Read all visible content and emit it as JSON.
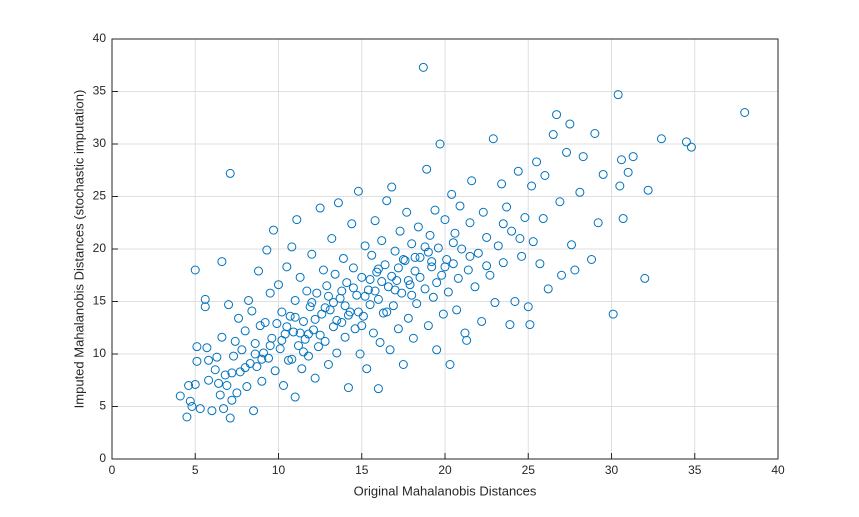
{
  "chart_data": {
    "type": "scatter",
    "x_label": "Original Mahalanobis Distances",
    "y_label": "Imputed Mahalanobis Distances (stochastic imputation)",
    "color": "#0072bd",
    "grid": true,
    "xlim": [
      0,
      40
    ],
    "ylim": [
      0,
      40
    ],
    "xticks": [
      0,
      5,
      10,
      15,
      20,
      25,
      30,
      35,
      40
    ],
    "yticks": [
      0,
      5,
      10,
      15,
      20,
      25,
      30,
      35,
      40
    ],
    "x": [
      4.1,
      4.5,
      4.6,
      4.7,
      4.8,
      5.0,
      5.0,
      5.1,
      5.1,
      5.3,
      5.6,
      5.6,
      5.7,
      5.8,
      5.8,
      6.0,
      6.2,
      6.4,
      6.5,
      6.6,
      6.6,
      6.7,
      6.8,
      6.9,
      7.0,
      7.1,
      7.1,
      7.2,
      7.3,
      7.4,
      7.5,
      7.6,
      7.7,
      7.8,
      8.0,
      8.1,
      8.2,
      8.3,
      8.4,
      8.5,
      8.6,
      8.7,
      8.8,
      8.9,
      9.0,
      9.1,
      9.2,
      9.3,
      9.4,
      9.5,
      9.6,
      9.7,
      9.8,
      9.9,
      10.0,
      10.1,
      10.2,
      10.3,
      10.4,
      10.5,
      10.6,
      10.7,
      10.8,
      10.9,
      11.0,
      11.0,
      11.1,
      11.2,
      11.3,
      11.4,
      11.5,
      11.6,
      11.7,
      11.8,
      11.9,
      12.0,
      12.1,
      12.2,
      12.3,
      12.4,
      12.5,
      12.6,
      12.7,
      12.8,
      12.9,
      13.0,
      13.1,
      13.2,
      13.3,
      13.4,
      13.5,
      13.6,
      13.7,
      13.8,
      13.9,
      14.0,
      14.1,
      14.2,
      14.3,
      14.4,
      14.5,
      14.6,
      14.7,
      14.8,
      14.9,
      15.0,
      15.1,
      15.2,
      15.3,
      15.4,
      15.5,
      15.6,
      15.7,
      15.8,
      15.9,
      16.0,
      16.0,
      16.1,
      16.2,
      16.3,
      16.4,
      16.5,
      16.6,
      16.7,
      16.8,
      16.9,
      17.0,
      17.1,
      17.2,
      17.3,
      17.4,
      17.5,
      17.6,
      17.7,
      17.8,
      17.9,
      18.0,
      18.1,
      18.2,
      18.3,
      18.4,
      18.5,
      18.7,
      18.8,
      18.9,
      19.0,
      19.1,
      19.2,
      19.3,
      19.4,
      19.5,
      19.6,
      19.7,
      19.8,
      19.9,
      20.0,
      20.1,
      20.2,
      20.3,
      20.4,
      20.5,
      20.6,
      20.7,
      20.8,
      20.9,
      21.0,
      21.2,
      21.3,
      21.4,
      21.5,
      21.6,
      21.8,
      22.0,
      22.2,
      22.3,
      22.5,
      22.7,
      22.9,
      23.0,
      23.2,
      23.4,
      23.5,
      23.7,
      23.9,
      24.0,
      24.2,
      24.4,
      24.6,
      24.8,
      25.0,
      25.1,
      25.2,
      25.3,
      25.5,
      25.7,
      25.9,
      26.0,
      26.2,
      26.5,
      26.7,
      26.9,
      27.0,
      27.3,
      27.5,
      27.6,
      27.8,
      28.1,
      28.3,
      28.8,
      29.0,
      29.2,
      29.5,
      30.1,
      30.4,
      30.5,
      30.6,
      30.7,
      31.0,
      31.3,
      32.0,
      32.2,
      33.0,
      34.5,
      34.8,
      38.0,
      10.5,
      11,
      11.5,
      12,
      12.5,
      13,
      13.5,
      14,
      14.5,
      15,
      15.5,
      16,
      16.5,
      17,
      17.5,
      18,
      18.5,
      19,
      19.5,
      20,
      10.2,
      11.3,
      12.2,
      13.3,
      14.2,
      15.2,
      16.2,
      17.2,
      18.2,
      19.2,
      9.5,
      10.8,
      11.8,
      12.8,
      13.8,
      14.8,
      15.8,
      16.8,
      17.8,
      18.8,
      9.0,
      8.0,
      7.2,
      6.3,
      8.6,
      20.5,
      21.5,
      22.5,
      23.5,
      24.5
    ],
    "values": [
      6.0,
      4.0,
      7.0,
      5.5,
      5.0,
      7.1,
      18.0,
      9.3,
      10.7,
      4.8,
      14.5,
      15.2,
      10.6,
      9.4,
      7.5,
      4.6,
      8.5,
      7.2,
      6.1,
      18.8,
      11.6,
      4.8,
      8.0,
      7.0,
      14.7,
      27.2,
      3.9,
      5.6,
      9.8,
      11.2,
      6.3,
      13.4,
      8.3,
      10.4,
      12.2,
      6.9,
      15.1,
      9.1,
      14.1,
      4.6,
      11.0,
      8.8,
      17.9,
      12.7,
      7.4,
      10.1,
      13.0,
      19.9,
      9.6,
      15.8,
      11.5,
      21.8,
      8.4,
      12.9,
      16.6,
      10.5,
      14.0,
      7.0,
      11.9,
      18.3,
      9.4,
      13.6,
      20.2,
      12.1,
      5.9,
      15.1,
      22.8,
      10.8,
      17.3,
      8.6,
      13.1,
      11.4,
      16.0,
      9.8,
      14.5,
      19.5,
      12.3,
      7.7,
      15.8,
      10.7,
      23.9,
      13.8,
      18.0,
      11.2,
      16.5,
      9.0,
      14.2,
      21.0,
      12.6,
      17.6,
      10.1,
      24.4,
      15.3,
      13.0,
      19.1,
      11.6,
      16.8,
      6.8,
      14.0,
      22.4,
      18.2,
      12.4,
      15.6,
      25.5,
      10.0,
      17.3,
      13.6,
      20.3,
      8.6,
      16.1,
      14.7,
      19.4,
      12.0,
      22.7,
      17.8,
      6.7,
      15.2,
      11.1,
      20.8,
      13.9,
      18.5,
      24.6,
      16.4,
      10.4,
      25.9,
      14.6,
      19.8,
      17.0,
      12.4,
      21.7,
      15.8,
      9.0,
      18.9,
      23.5,
      13.4,
      16.6,
      20.5,
      11.5,
      17.9,
      14.8,
      22.1,
      19.2,
      37.3,
      16.2,
      27.6,
      12.7,
      21.3,
      18.3,
      15.4,
      23.7,
      10.4,
      20.1,
      30.0,
      17.5,
      13.8,
      22.8,
      19.0,
      15.9,
      9.0,
      25.2,
      18.6,
      21.5,
      14.2,
      17.2,
      24.1,
      20.0,
      12.0,
      11.3,
      18.0,
      22.5,
      26.5,
      16.4,
      19.6,
      13.1,
      23.5,
      21.1,
      17.5,
      30.5,
      14.9,
      20.3,
      26.2,
      18.7,
      24.0,
      12.8,
      21.7,
      15.0,
      27.4,
      19.3,
      23.0,
      14.5,
      12.8,
      26.0,
      20.7,
      28.3,
      18.6,
      22.9,
      27.0,
      16.2,
      30.9,
      32.8,
      24.5,
      17.5,
      29.2,
      31.9,
      20.4,
      18.0,
      25.4,
      28.8,
      19.0,
      31.0,
      22.5,
      27.1,
      13.8,
      34.7,
      26.0,
      28.5,
      22.9,
      27.3,
      28.8,
      17.2,
      25.6,
      30.5,
      30.2,
      29.7,
      33.0,
      12.6,
      13.5,
      10.2,
      14.9,
      11.8,
      15.5,
      13.2,
      14.6,
      16.3,
      12.7,
      17.1,
      18.1,
      14.0,
      16.1,
      19.0,
      15.6,
      17.3,
      19.7,
      16.8,
      18.3,
      11.3,
      12.0,
      13.3,
      14.9,
      13.7,
      15.5,
      16.9,
      18.2,
      19.2,
      18.8,
      10.8,
      9.5,
      11.9,
      14.4,
      16.0,
      14.0,
      16.0,
      17.4,
      17.0,
      20.2,
      9.5,
      8.7,
      8.2,
      9.7,
      10.0,
      20.6,
      19.3,
      18.4,
      22.4,
      21.0
    ]
  }
}
